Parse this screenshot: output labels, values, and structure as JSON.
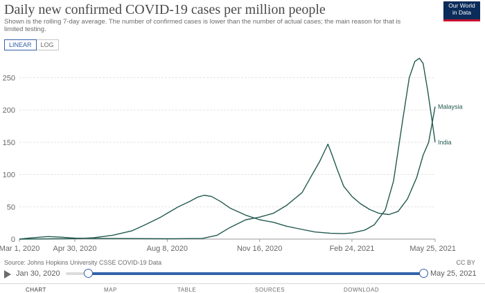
{
  "header": {
    "title": "Daily new confirmed COVID-19 cases per million people",
    "subtitle": "Shown is the rolling 7-day average. The number of confirmed cases is lower than the number of actual cases; the main reason for that is limited testing."
  },
  "logo": {
    "line1": "Our World",
    "line2": "in Data"
  },
  "scale": {
    "linear": "LINEAR",
    "log": "LOG",
    "selected": "linear"
  },
  "colors": {
    "series": "#21594f",
    "accent": "#3360a9",
    "grid": "#e3e3e3"
  },
  "chart_data": {
    "type": "line",
    "ylim": [
      0,
      290
    ],
    "y_ticks": [
      "0",
      "50",
      "100",
      "150",
      "200",
      "250"
    ],
    "x_ticks": [
      "Mar 1, 2020",
      "Apr 30, 2020",
      "Aug 8, 2020",
      "Nov 16, 2020",
      "Feb 24, 2021",
      "May 25, 2021"
    ],
    "grid": true,
    "series": [
      {
        "name": "India",
        "points": [
          [
            "2020-03-01",
            0
          ],
          [
            "2020-04-30",
            0.8
          ],
          [
            "2020-05-20",
            2
          ],
          [
            "2020-06-10",
            6
          ],
          [
            "2020-07-01",
            13
          ],
          [
            "2020-07-15",
            22
          ],
          [
            "2020-08-01",
            34
          ],
          [
            "2020-08-08",
            40
          ],
          [
            "2020-08-20",
            50
          ],
          [
            "2020-09-01",
            58
          ],
          [
            "2020-09-10",
            65
          ],
          [
            "2020-09-17",
            68
          ],
          [
            "2020-09-25",
            66
          ],
          [
            "2020-10-05",
            58
          ],
          [
            "2020-10-15",
            48
          ],
          [
            "2020-11-01",
            37
          ],
          [
            "2020-11-16",
            30
          ],
          [
            "2020-12-01",
            26
          ],
          [
            "2020-12-15",
            20
          ],
          [
            "2021-01-01",
            15
          ],
          [
            "2021-01-15",
            11
          ],
          [
            "2021-02-01",
            9
          ],
          [
            "2021-02-15",
            8.5
          ],
          [
            "2021-02-24",
            9.5
          ],
          [
            "2021-03-10",
            14
          ],
          [
            "2021-03-20",
            22
          ],
          [
            "2021-04-01",
            45
          ],
          [
            "2021-04-10",
            90
          ],
          [
            "2021-04-20",
            185
          ],
          [
            "2021-04-27",
            250
          ],
          [
            "2021-05-03",
            275
          ],
          [
            "2021-05-08",
            280
          ],
          [
            "2021-05-12",
            272
          ],
          [
            "2021-05-17",
            230
          ],
          [
            "2021-05-21",
            190
          ],
          [
            "2021-05-25",
            150
          ]
        ]
      },
      {
        "name": "Malaysia",
        "points": [
          [
            "2020-03-01",
            0
          ],
          [
            "2020-03-15",
            2
          ],
          [
            "2020-04-01",
            4
          ],
          [
            "2020-04-15",
            3
          ],
          [
            "2020-04-30",
            1.5
          ],
          [
            "2020-06-01",
            1
          ],
          [
            "2020-08-08",
            0.5
          ],
          [
            "2020-09-15",
            1
          ],
          [
            "2020-10-01",
            6
          ],
          [
            "2020-10-15",
            18
          ],
          [
            "2020-11-01",
            30
          ],
          [
            "2020-11-16",
            34
          ],
          [
            "2020-12-01",
            40
          ],
          [
            "2020-12-15",
            52
          ],
          [
            "2021-01-01",
            72
          ],
          [
            "2021-01-10",
            95
          ],
          [
            "2021-01-20",
            120
          ],
          [
            "2021-01-26",
            138
          ],
          [
            "2021-01-29",
            147
          ],
          [
            "2021-02-02",
            132
          ],
          [
            "2021-02-08",
            108
          ],
          [
            "2021-02-15",
            82
          ],
          [
            "2021-02-24",
            66
          ],
          [
            "2021-03-05",
            55
          ],
          [
            "2021-03-15",
            46
          ],
          [
            "2021-03-25",
            40
          ],
          [
            "2021-04-05",
            38
          ],
          [
            "2021-04-15",
            43
          ],
          [
            "2021-04-25",
            62
          ],
          [
            "2021-05-05",
            95
          ],
          [
            "2021-05-12",
            130
          ],
          [
            "2021-05-18",
            150
          ],
          [
            "2021-05-25",
            205
          ]
        ]
      }
    ]
  },
  "footer": {
    "source": "Source: Johns Hopkins University CSSE COVID-19 Data",
    "license": "CC BY"
  },
  "timeline": {
    "start_label": "Jan 30, 2020",
    "end_label": "May 25, 2021"
  },
  "tabs": [
    "CHART",
    "MAP",
    "TABLE",
    "SOURCES",
    "DOWNLOAD"
  ]
}
